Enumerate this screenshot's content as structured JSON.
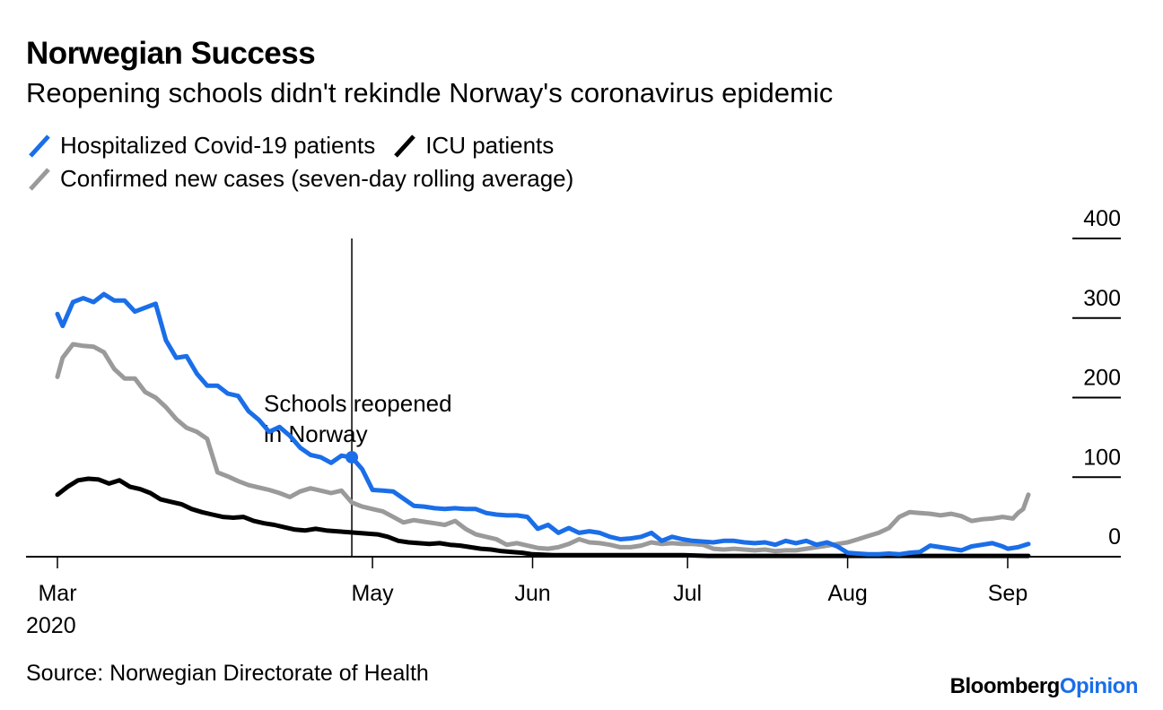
{
  "title": "Norwegian Success",
  "subtitle": "Reopening schools didn't rekindle Norway's coronavirus epidemic",
  "source": "Source: Norwegian Directorate of Health",
  "brand": {
    "part1": "Bloomberg",
    "part2": "Opinion"
  },
  "colors": {
    "hospitalized": "#1a6ee8",
    "icu": "#000000",
    "cases": "#9a9a9a",
    "text": "#000000"
  },
  "chart_data": {
    "type": "line",
    "title": "Norwegian Success",
    "subtitle": "Reopening schools didn't rekindle Norway's coronavirus epidemic",
    "ylim": [
      0,
      400
    ],
    "y_ticks": [
      {
        "value": 0,
        "label": "0"
      },
      {
        "value": 100,
        "label": "100"
      },
      {
        "value": 200,
        "label": "200"
      },
      {
        "value": 300,
        "label": "300"
      },
      {
        "value": 400,
        "label": "400"
      }
    ],
    "y_axis_side": "right",
    "x_ticks": [
      {
        "date": "2020-03-01",
        "label": "Mar",
        "sublabel": "2020"
      },
      {
        "date": "2020-05-01",
        "label": "May"
      },
      {
        "date": "2020-06-01",
        "label": "Jun"
      },
      {
        "date": "2020-07-01",
        "label": "Jul"
      },
      {
        "date": "2020-08-01",
        "label": "Aug"
      },
      {
        "date": "2020-09-01",
        "label": "Sep"
      }
    ],
    "legend_position": "top-left",
    "grid": false,
    "annotation": {
      "date": "2020-04-27",
      "label_line1": "Schools reopened",
      "label_line2": "in Norway",
      "marker_value": 125
    },
    "series": [
      {
        "name": "Hospitalized Covid-19 patients",
        "color": "#1a6ee8",
        "points": [
          [
            "2020-03-01",
            305
          ],
          [
            "2020-03-02",
            290
          ],
          [
            "2020-03-04",
            320
          ],
          [
            "2020-03-06",
            325
          ],
          [
            "2020-03-08",
            320
          ],
          [
            "2020-03-10",
            330
          ],
          [
            "2020-03-12",
            322
          ],
          [
            "2020-03-14",
            322
          ],
          [
            "2020-03-16",
            308
          ],
          [
            "2020-03-18",
            313
          ],
          [
            "2020-03-20",
            318
          ],
          [
            "2020-03-22",
            272
          ],
          [
            "2020-03-24",
            250
          ],
          [
            "2020-03-26",
            252
          ],
          [
            "2020-03-28",
            230
          ],
          [
            "2020-03-30",
            215
          ],
          [
            "2020-04-01",
            215
          ],
          [
            "2020-04-03",
            205
          ],
          [
            "2020-04-05",
            202
          ],
          [
            "2020-04-07",
            183
          ],
          [
            "2020-04-09",
            172
          ],
          [
            "2020-04-11",
            157
          ],
          [
            "2020-04-13",
            163
          ],
          [
            "2020-04-15",
            152
          ],
          [
            "2020-04-17",
            137
          ],
          [
            "2020-04-19",
            128
          ],
          [
            "2020-04-21",
            125
          ],
          [
            "2020-04-23",
            118
          ],
          [
            "2020-04-25",
            127
          ],
          [
            "2020-04-27",
            125
          ],
          [
            "2020-04-29",
            110
          ],
          [
            "2020-05-01",
            84
          ],
          [
            "2020-05-03",
            83
          ],
          [
            "2020-05-05",
            82
          ],
          [
            "2020-05-07",
            73
          ],
          [
            "2020-05-09",
            64
          ],
          [
            "2020-05-11",
            63
          ],
          [
            "2020-05-13",
            61
          ],
          [
            "2020-05-15",
            60
          ],
          [
            "2020-05-17",
            61
          ],
          [
            "2020-05-19",
            60
          ],
          [
            "2020-05-21",
            60
          ],
          [
            "2020-05-23",
            55
          ],
          [
            "2020-05-25",
            53
          ],
          [
            "2020-05-27",
            52
          ],
          [
            "2020-05-29",
            52
          ],
          [
            "2020-05-31",
            50
          ],
          [
            "2020-06-02",
            35
          ],
          [
            "2020-06-04",
            40
          ],
          [
            "2020-06-06",
            30
          ],
          [
            "2020-06-08",
            36
          ],
          [
            "2020-06-10",
            30
          ],
          [
            "2020-06-12",
            32
          ],
          [
            "2020-06-14",
            30
          ],
          [
            "2020-06-16",
            25
          ],
          [
            "2020-06-18",
            22
          ],
          [
            "2020-06-20",
            23
          ],
          [
            "2020-06-22",
            25
          ],
          [
            "2020-06-24",
            30
          ],
          [
            "2020-06-26",
            20
          ],
          [
            "2020-06-28",
            25
          ],
          [
            "2020-06-30",
            22
          ],
          [
            "2020-07-02",
            20
          ],
          [
            "2020-07-04",
            19
          ],
          [
            "2020-07-06",
            18
          ],
          [
            "2020-07-08",
            20
          ],
          [
            "2020-07-10",
            20
          ],
          [
            "2020-07-12",
            18
          ],
          [
            "2020-07-14",
            17
          ],
          [
            "2020-07-16",
            18
          ],
          [
            "2020-07-18",
            15
          ],
          [
            "2020-07-20",
            20
          ],
          [
            "2020-07-22",
            17
          ],
          [
            "2020-07-24",
            20
          ],
          [
            "2020-07-26",
            15
          ],
          [
            "2020-07-28",
            18
          ],
          [
            "2020-07-30",
            13
          ],
          [
            "2020-08-01",
            5
          ],
          [
            "2020-08-03",
            4
          ],
          [
            "2020-08-05",
            3
          ],
          [
            "2020-08-07",
            3
          ],
          [
            "2020-08-09",
            4
          ],
          [
            "2020-08-11",
            3
          ],
          [
            "2020-08-13",
            5
          ],
          [
            "2020-08-15",
            6
          ],
          [
            "2020-08-17",
            14
          ],
          [
            "2020-08-19",
            12
          ],
          [
            "2020-08-21",
            10
          ],
          [
            "2020-08-23",
            8
          ],
          [
            "2020-08-25",
            13
          ],
          [
            "2020-08-27",
            15
          ],
          [
            "2020-08-29",
            17
          ],
          [
            "2020-08-31",
            13
          ],
          [
            "2020-09-01",
            10
          ],
          [
            "2020-09-03",
            12
          ],
          [
            "2020-09-05",
            16
          ]
        ]
      },
      {
        "name": "ICU patients",
        "color": "#000000",
        "points": [
          [
            "2020-03-01",
            78
          ],
          [
            "2020-03-03",
            88
          ],
          [
            "2020-03-05",
            96
          ],
          [
            "2020-03-07",
            98
          ],
          [
            "2020-03-09",
            97
          ],
          [
            "2020-03-11",
            92
          ],
          [
            "2020-03-13",
            96
          ],
          [
            "2020-03-15",
            88
          ],
          [
            "2020-03-17",
            85
          ],
          [
            "2020-03-19",
            80
          ],
          [
            "2020-03-21",
            72
          ],
          [
            "2020-03-23",
            69
          ],
          [
            "2020-03-25",
            66
          ],
          [
            "2020-03-27",
            60
          ],
          [
            "2020-03-29",
            56
          ],
          [
            "2020-03-31",
            53
          ],
          [
            "2020-04-02",
            50
          ],
          [
            "2020-04-04",
            49
          ],
          [
            "2020-04-06",
            50
          ],
          [
            "2020-04-08",
            45
          ],
          [
            "2020-04-10",
            42
          ],
          [
            "2020-04-12",
            40
          ],
          [
            "2020-04-14",
            37
          ],
          [
            "2020-04-16",
            34
          ],
          [
            "2020-04-18",
            33
          ],
          [
            "2020-04-20",
            35
          ],
          [
            "2020-04-22",
            33
          ],
          [
            "2020-04-24",
            32
          ],
          [
            "2020-04-26",
            31
          ],
          [
            "2020-04-28",
            30
          ],
          [
            "2020-04-30",
            29
          ],
          [
            "2020-05-02",
            28
          ],
          [
            "2020-05-04",
            25
          ],
          [
            "2020-05-06",
            20
          ],
          [
            "2020-05-08",
            18
          ],
          [
            "2020-05-10",
            17
          ],
          [
            "2020-05-12",
            16
          ],
          [
            "2020-05-14",
            17
          ],
          [
            "2020-05-16",
            15
          ],
          [
            "2020-05-18",
            14
          ],
          [
            "2020-05-20",
            12
          ],
          [
            "2020-05-22",
            10
          ],
          [
            "2020-05-24",
            9
          ],
          [
            "2020-05-26",
            7
          ],
          [
            "2020-05-28",
            6
          ],
          [
            "2020-05-30",
            5
          ],
          [
            "2020-06-01",
            3
          ],
          [
            "2020-06-05",
            2
          ],
          [
            "2020-06-10",
            2
          ],
          [
            "2020-06-15",
            2
          ],
          [
            "2020-06-20",
            2
          ],
          [
            "2020-06-25",
            2
          ],
          [
            "2020-06-30",
            2
          ],
          [
            "2020-07-05",
            1
          ],
          [
            "2020-07-10",
            1
          ],
          [
            "2020-07-15",
            1
          ],
          [
            "2020-07-20",
            1
          ],
          [
            "2020-07-25",
            1
          ],
          [
            "2020-07-30",
            1
          ],
          [
            "2020-08-04",
            1
          ],
          [
            "2020-08-09",
            1
          ],
          [
            "2020-08-14",
            1
          ],
          [
            "2020-08-19",
            1
          ],
          [
            "2020-08-24",
            1
          ],
          [
            "2020-08-29",
            1
          ],
          [
            "2020-09-05",
            1
          ]
        ]
      },
      {
        "name": "Confirmed new cases (seven-day rolling average)",
        "color": "#9a9a9a",
        "points": [
          [
            "2020-03-01",
            226
          ],
          [
            "2020-03-02",
            250
          ],
          [
            "2020-03-04",
            267
          ],
          [
            "2020-03-06",
            265
          ],
          [
            "2020-03-08",
            264
          ],
          [
            "2020-03-10",
            257
          ],
          [
            "2020-03-12",
            236
          ],
          [
            "2020-03-14",
            224
          ],
          [
            "2020-03-16",
            224
          ],
          [
            "2020-03-18",
            207
          ],
          [
            "2020-03-20",
            200
          ],
          [
            "2020-03-22",
            188
          ],
          [
            "2020-03-24",
            173
          ],
          [
            "2020-03-26",
            162
          ],
          [
            "2020-03-28",
            157
          ],
          [
            "2020-03-30",
            148
          ],
          [
            "2020-04-01",
            106
          ],
          [
            "2020-04-03",
            101
          ],
          [
            "2020-04-05",
            95
          ],
          [
            "2020-04-07",
            90
          ],
          [
            "2020-04-09",
            87
          ],
          [
            "2020-04-11",
            84
          ],
          [
            "2020-04-13",
            80
          ],
          [
            "2020-04-15",
            75
          ],
          [
            "2020-04-17",
            82
          ],
          [
            "2020-04-19",
            86
          ],
          [
            "2020-04-21",
            83
          ],
          [
            "2020-04-23",
            80
          ],
          [
            "2020-04-25",
            83
          ],
          [
            "2020-04-27",
            68
          ],
          [
            "2020-04-29",
            63
          ],
          [
            "2020-05-01",
            60
          ],
          [
            "2020-05-03",
            57
          ],
          [
            "2020-05-05",
            50
          ],
          [
            "2020-05-07",
            43
          ],
          [
            "2020-05-09",
            46
          ],
          [
            "2020-05-11",
            44
          ],
          [
            "2020-05-13",
            42
          ],
          [
            "2020-05-15",
            40
          ],
          [
            "2020-05-17",
            45
          ],
          [
            "2020-05-19",
            35
          ],
          [
            "2020-05-21",
            28
          ],
          [
            "2020-05-23",
            25
          ],
          [
            "2020-05-25",
            22
          ],
          [
            "2020-05-27",
            15
          ],
          [
            "2020-05-29",
            17
          ],
          [
            "2020-05-31",
            14
          ],
          [
            "2020-06-02",
            11
          ],
          [
            "2020-06-04",
            10
          ],
          [
            "2020-06-06",
            12
          ],
          [
            "2020-06-08",
            16
          ],
          [
            "2020-06-10",
            22
          ],
          [
            "2020-06-12",
            18
          ],
          [
            "2020-06-14",
            17
          ],
          [
            "2020-06-16",
            15
          ],
          [
            "2020-06-18",
            12
          ],
          [
            "2020-06-20",
            12
          ],
          [
            "2020-06-22",
            14
          ],
          [
            "2020-06-24",
            18
          ],
          [
            "2020-06-26",
            16
          ],
          [
            "2020-06-28",
            17
          ],
          [
            "2020-06-30",
            16
          ],
          [
            "2020-07-02",
            16
          ],
          [
            "2020-07-04",
            15
          ],
          [
            "2020-07-06",
            10
          ],
          [
            "2020-07-08",
            9
          ],
          [
            "2020-07-10",
            10
          ],
          [
            "2020-07-12",
            9
          ],
          [
            "2020-07-14",
            8
          ],
          [
            "2020-07-16",
            9
          ],
          [
            "2020-07-18",
            7
          ],
          [
            "2020-07-20",
            8
          ],
          [
            "2020-07-22",
            8
          ],
          [
            "2020-07-24",
            10
          ],
          [
            "2020-07-26",
            12
          ],
          [
            "2020-07-28",
            14
          ],
          [
            "2020-07-30",
            16
          ],
          [
            "2020-08-01",
            18
          ],
          [
            "2020-08-03",
            22
          ],
          [
            "2020-08-05",
            26
          ],
          [
            "2020-08-07",
            30
          ],
          [
            "2020-08-09",
            36
          ],
          [
            "2020-08-11",
            50
          ],
          [
            "2020-08-13",
            56
          ],
          [
            "2020-08-15",
            55
          ],
          [
            "2020-08-17",
            54
          ],
          [
            "2020-08-19",
            52
          ],
          [
            "2020-08-21",
            54
          ],
          [
            "2020-08-23",
            51
          ],
          [
            "2020-08-25",
            45
          ],
          [
            "2020-08-27",
            47
          ],
          [
            "2020-08-29",
            48
          ],
          [
            "2020-08-31",
            50
          ],
          [
            "2020-09-02",
            48
          ],
          [
            "2020-09-03",
            55
          ],
          [
            "2020-09-04",
            60
          ],
          [
            "2020-09-05",
            78
          ]
        ]
      }
    ]
  }
}
